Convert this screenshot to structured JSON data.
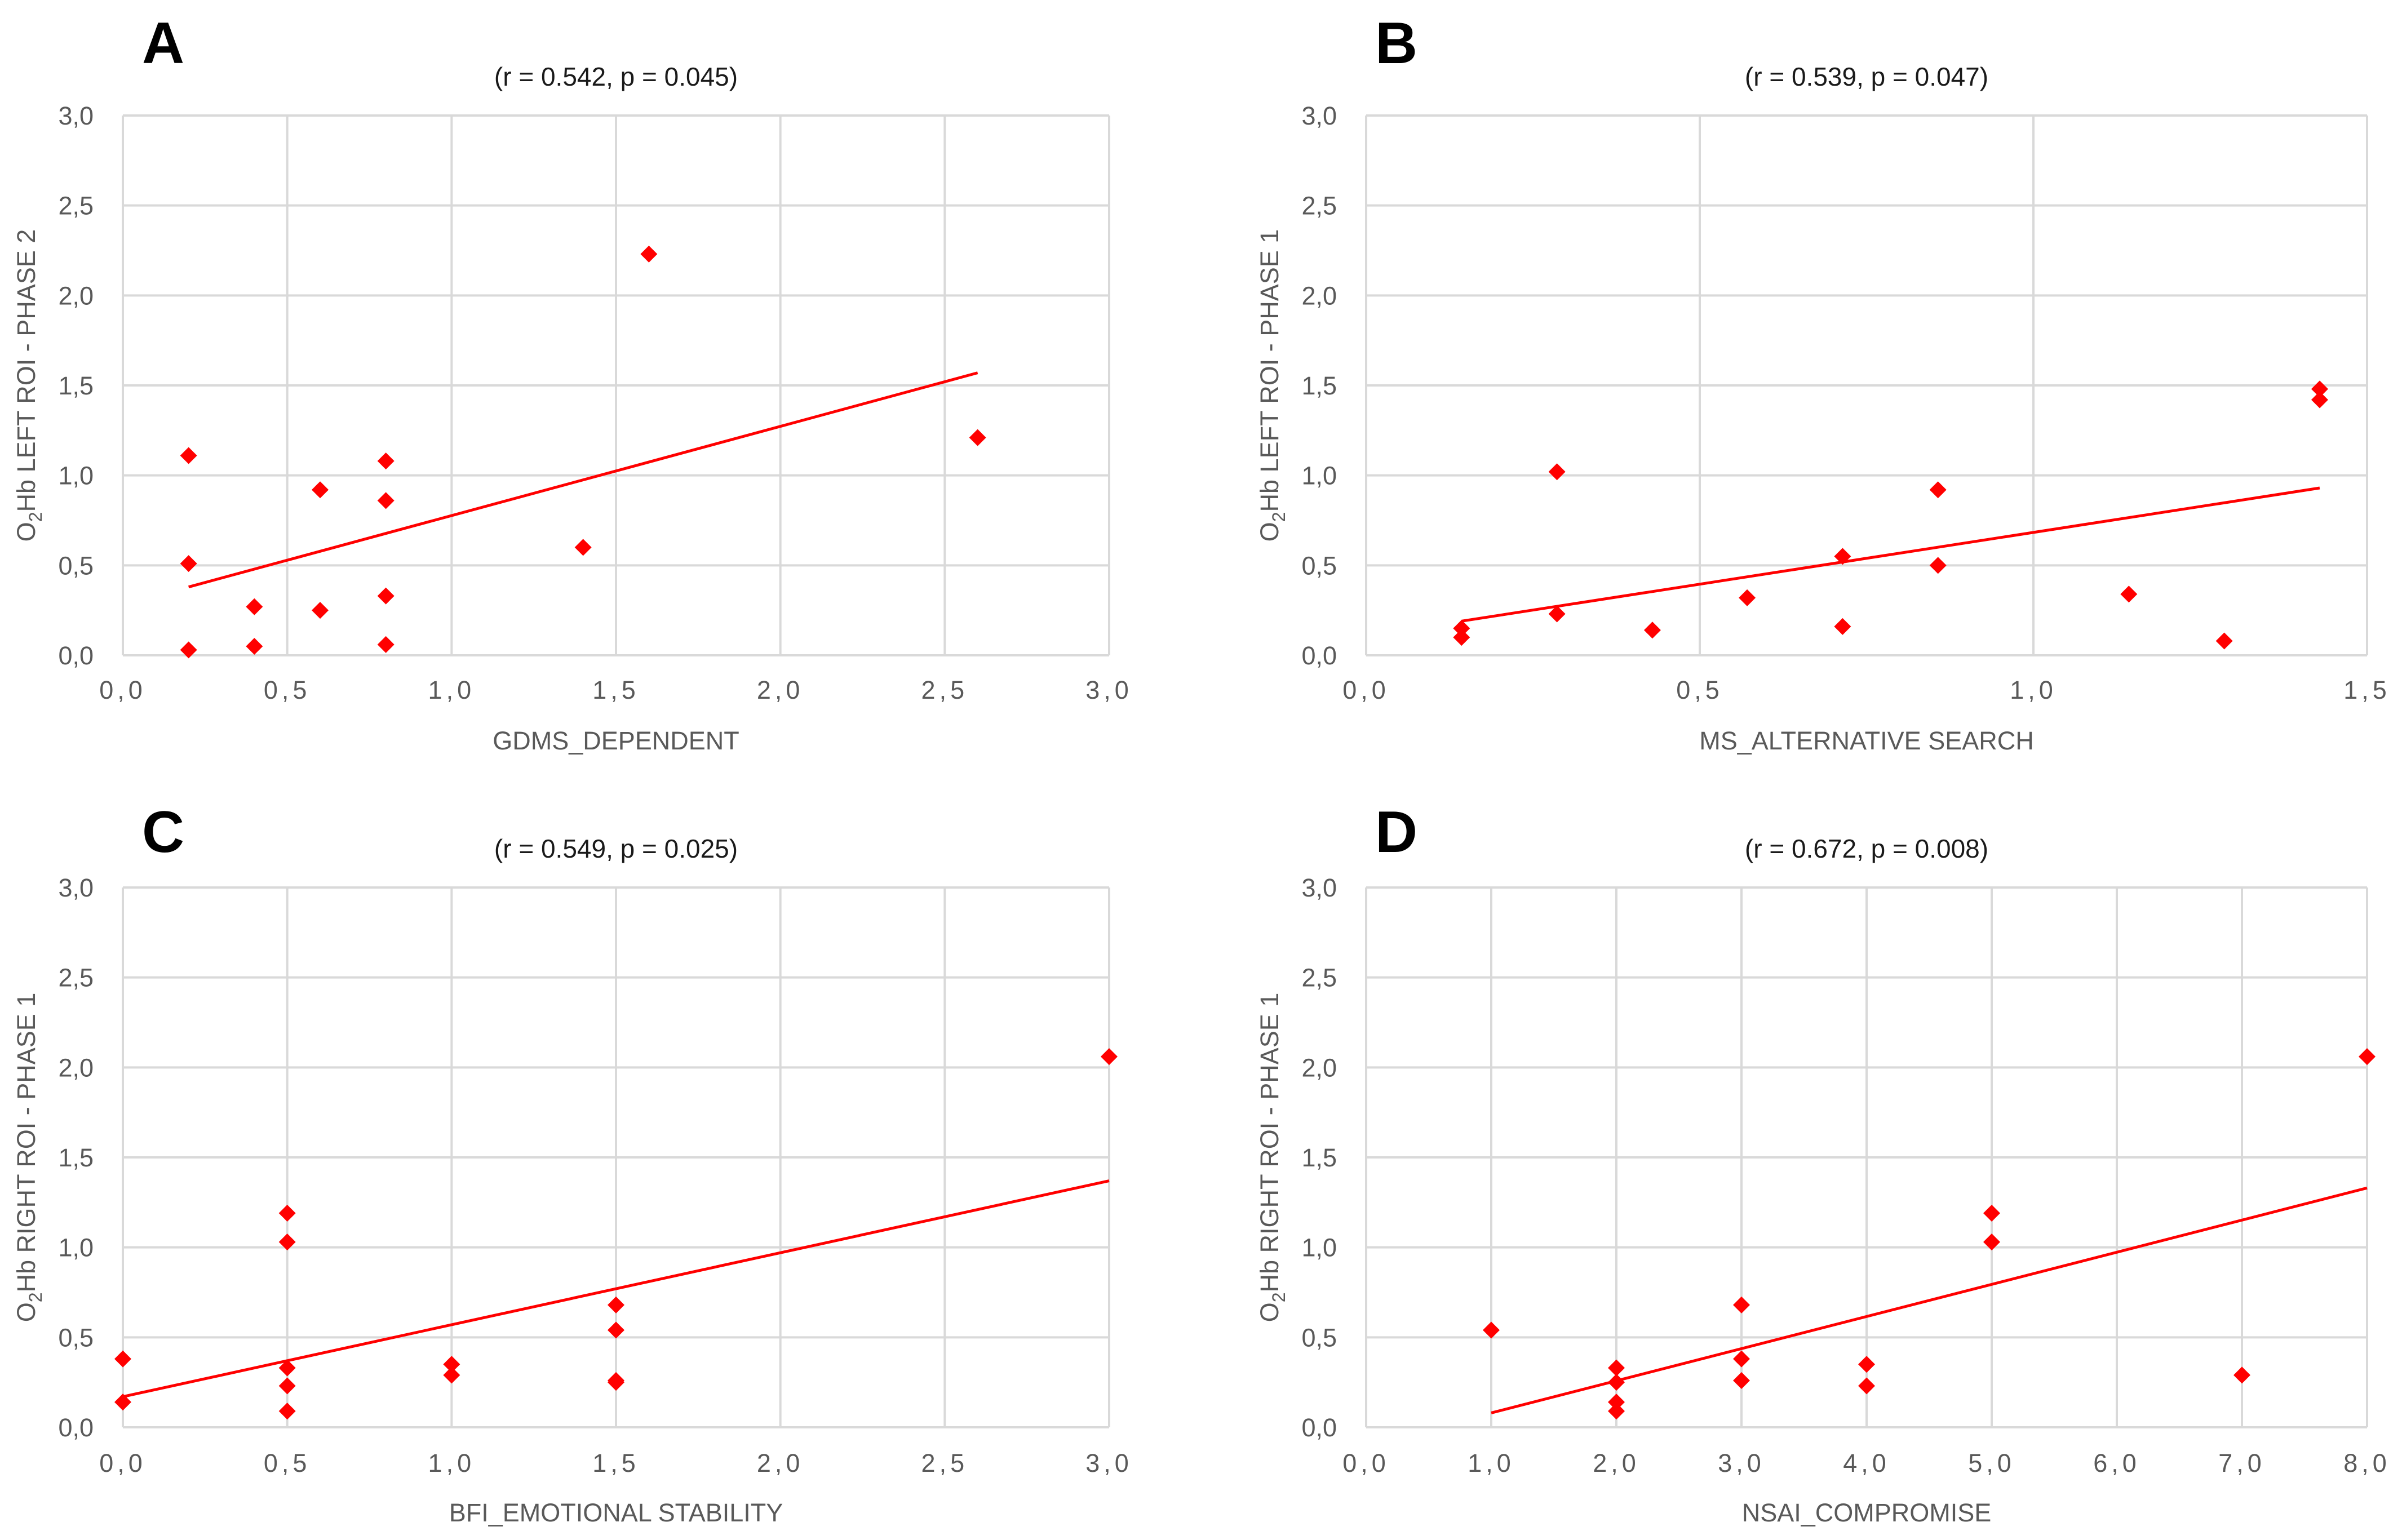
{
  "figure": {
    "marker_color": "#ff0000",
    "trendline_color": "#ff0000",
    "grid_color": "#d9d9d9"
  },
  "chart_data": [
    {
      "panel": "A",
      "type": "scatter",
      "title": "(r = 0.542, p = 0.045)",
      "xlabel": "GDMS_DEPENDENT",
      "ylabel_main": "O",
      "ylabel_sub": "2",
      "ylabel_rest": "Hb LEFT ROI - PHASE 2",
      "xlim": [
        0,
        3
      ],
      "ylim": [
        0,
        3
      ],
      "x_ticks": [
        "0,0",
        "0,5",
        "1,0",
        "1,5",
        "2,0",
        "2,5",
        "3,0"
      ],
      "x_tick_values": [
        0,
        0.5,
        1,
        1.5,
        2,
        2.5,
        3
      ],
      "y_ticks": [
        "0,0",
        "0,5",
        "1,0",
        "1,5",
        "2,0",
        "2,5",
        "3,0"
      ],
      "y_tick_values": [
        0,
        0.5,
        1,
        1.5,
        2,
        2.5,
        3
      ],
      "points": [
        [
          0.2,
          1.11
        ],
        [
          0.2,
          0.51
        ],
        [
          0.2,
          0.03
        ],
        [
          0.4,
          0.27
        ],
        [
          0.4,
          0.05
        ],
        [
          0.6,
          0.92
        ],
        [
          0.6,
          0.25
        ],
        [
          0.8,
          1.08
        ],
        [
          0.8,
          0.86
        ],
        [
          0.8,
          0.33
        ],
        [
          0.8,
          0.06
        ],
        [
          1.4,
          0.6
        ],
        [
          1.6,
          2.23
        ],
        [
          2.6,
          1.21
        ]
      ],
      "trendline": [
        [
          0.2,
          0.38
        ],
        [
          2.6,
          1.57
        ]
      ]
    },
    {
      "panel": "B",
      "type": "scatter",
      "title": "(r = 0.539, p = 0.047)",
      "xlabel": "MS_ALTERNATIVE SEARCH",
      "ylabel_main": "O",
      "ylabel_sub": "2",
      "ylabel_rest": "Hb LEFT ROI - PHASE 1",
      "xlim": [
        0,
        1.5
      ],
      "ylim": [
        0,
        3
      ],
      "x_ticks": [
        "0,0",
        "0,5",
        "1,0",
        "1,5"
      ],
      "x_tick_values": [
        0,
        0.5,
        1,
        1.5
      ],
      "y_ticks": [
        "0,0",
        "0,5",
        "1,0",
        "1,5",
        "2,0",
        "2,5",
        "3,0"
      ],
      "y_tick_values": [
        0,
        0.5,
        1,
        1.5,
        2,
        2.5,
        3
      ],
      "points": [
        [
          0.143,
          0.15
        ],
        [
          0.143,
          0.1
        ],
        [
          0.286,
          1.02
        ],
        [
          0.286,
          0.23
        ],
        [
          0.429,
          0.14
        ],
        [
          0.571,
          0.32
        ],
        [
          0.714,
          0.55
        ],
        [
          0.714,
          0.16
        ],
        [
          0.857,
          0.92
        ],
        [
          0.857,
          0.5
        ],
        [
          1.143,
          0.34
        ],
        [
          1.286,
          0.08
        ],
        [
          1.429,
          1.48
        ],
        [
          1.429,
          1.42
        ]
      ],
      "trendline": [
        [
          0.143,
          0.19
        ],
        [
          1.429,
          0.93
        ]
      ]
    },
    {
      "panel": "C",
      "type": "scatter",
      "title": "(r = 0.549, p = 0.025)",
      "xlabel": "BFI_EMOTIONAL STABILITY",
      "ylabel_main": "O",
      "ylabel_sub": "2",
      "ylabel_rest": "Hb RIGHT ROI - PHASE 1",
      "xlim": [
        0,
        3
      ],
      "ylim": [
        0,
        3
      ],
      "x_ticks": [
        "0,0",
        "0,5",
        "1,0",
        "1,5",
        "2,0",
        "2,5",
        "3,0"
      ],
      "x_tick_values": [
        0,
        0.5,
        1,
        1.5,
        2,
        2.5,
        3
      ],
      "y_ticks": [
        "0,0",
        "0,5",
        "1,0",
        "1,5",
        "2,0",
        "2,5",
        "3,0"
      ],
      "y_tick_values": [
        0,
        0.5,
        1,
        1.5,
        2,
        2.5,
        3
      ],
      "points": [
        [
          0.0,
          0.38
        ],
        [
          0.0,
          0.14
        ],
        [
          0.5,
          1.19
        ],
        [
          0.5,
          1.03
        ],
        [
          0.5,
          0.33
        ],
        [
          0.5,
          0.23
        ],
        [
          0.5,
          0.09
        ],
        [
          1.0,
          0.35
        ],
        [
          1.0,
          0.29
        ],
        [
          1.5,
          0.68
        ],
        [
          1.5,
          0.54
        ],
        [
          1.5,
          0.26
        ],
        [
          1.5,
          0.25
        ],
        [
          3.0,
          2.06
        ]
      ],
      "trendline": [
        [
          0.0,
          0.17
        ],
        [
          3.0,
          1.37
        ]
      ]
    },
    {
      "panel": "D",
      "type": "scatter",
      "title": "(r = 0.672, p = 0.008)",
      "xlabel": "NSAI_COMPROMISE",
      "ylabel_main": "O",
      "ylabel_sub": "2",
      "ylabel_rest": "Hb RIGHT ROI - PHASE 1",
      "xlim": [
        0,
        8
      ],
      "ylim": [
        0,
        3
      ],
      "x_ticks": [
        "0,0",
        "1,0",
        "2,0",
        "3,0",
        "4,0",
        "5,0",
        "6,0",
        "7,0",
        "8,0"
      ],
      "x_tick_values": [
        0,
        1,
        2,
        3,
        4,
        5,
        6,
        7,
        8
      ],
      "y_ticks": [
        "0,0",
        "0,5",
        "1,0",
        "1,5",
        "2,0",
        "2,5",
        "3,0"
      ],
      "y_tick_values": [
        0,
        0.5,
        1,
        1.5,
        2,
        2.5,
        3
      ],
      "points": [
        [
          1,
          0.54
        ],
        [
          2,
          0.33
        ],
        [
          2,
          0.25
        ],
        [
          2,
          0.14
        ],
        [
          2,
          0.09
        ],
        [
          3,
          0.68
        ],
        [
          3,
          0.38
        ],
        [
          3,
          0.26
        ],
        [
          4,
          0.35
        ],
        [
          4,
          0.23
        ],
        [
          5,
          1.19
        ],
        [
          5,
          1.03
        ],
        [
          7,
          0.29
        ],
        [
          8,
          2.06
        ]
      ],
      "trendline": [
        [
          1,
          0.08
        ],
        [
          8,
          1.33
        ]
      ]
    }
  ]
}
